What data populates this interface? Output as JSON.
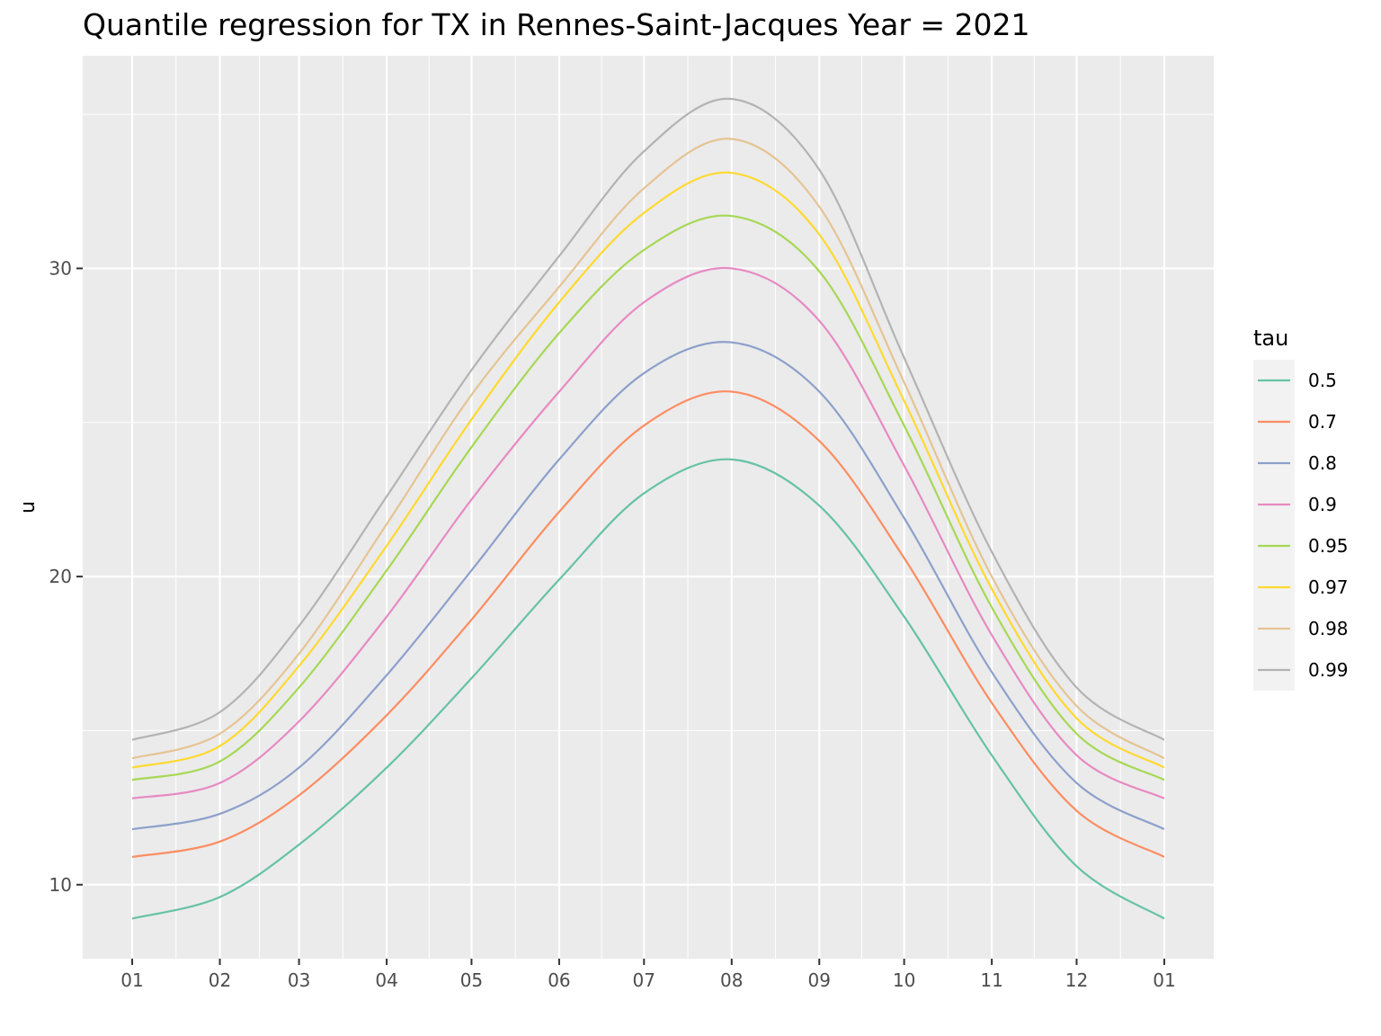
{
  "chart_data": {
    "type": "line",
    "title": "Quantile regression for TX in Rennes-Saint-Jacques Year = 2021",
    "xlabel": "",
    "ylabel": "u",
    "x_ticks": [
      "01",
      "02",
      "03",
      "04",
      "05",
      "06",
      "07",
      "08",
      "09",
      "10",
      "11",
      "12",
      "01"
    ],
    "y_ticks": [
      10,
      20,
      30
    ],
    "ylim": [
      7.6,
      36.9
    ],
    "grid": true,
    "legend_title": "tau",
    "legend_position": "right",
    "x_unit": "day of year",
    "x": [
      1,
      32,
      60,
      91,
      121,
      152,
      182,
      213,
      244,
      274,
      305,
      335,
      366
    ],
    "series": [
      {
        "name": "0.5",
        "color": "#66C2A5",
        "values": [
          8.9,
          9.6,
          11.3,
          13.8,
          16.7,
          19.9,
          22.7,
          23.8,
          22.3,
          18.7,
          14.2,
          10.6,
          8.9
        ]
      },
      {
        "name": "0.7",
        "color": "#FC8D62",
        "values": [
          10.9,
          11.4,
          12.9,
          15.5,
          18.6,
          22.1,
          24.9,
          26.0,
          24.4,
          20.6,
          15.9,
          12.4,
          10.9
        ]
      },
      {
        "name": "0.8",
        "color": "#8DA0CB",
        "values": [
          11.8,
          12.3,
          13.8,
          16.8,
          20.2,
          23.8,
          26.6,
          27.6,
          26.0,
          21.9,
          16.9,
          13.3,
          11.8
        ]
      },
      {
        "name": "0.9",
        "color": "#E78AC3",
        "values": [
          12.8,
          13.3,
          15.3,
          18.7,
          22.5,
          26.0,
          28.9,
          30.0,
          28.3,
          23.6,
          18.1,
          14.2,
          12.8
        ]
      },
      {
        "name": "0.95",
        "color": "#A6D854",
        "values": [
          13.4,
          14.0,
          16.4,
          20.2,
          24.2,
          27.9,
          30.6,
          31.7,
          29.9,
          24.9,
          19.0,
          14.9,
          13.4
        ]
      },
      {
        "name": "0.97",
        "color": "#FFD92F",
        "values": [
          13.8,
          14.5,
          17.1,
          21.0,
          25.1,
          28.9,
          31.8,
          33.1,
          31.1,
          25.7,
          19.6,
          15.4,
          13.8
        ]
      },
      {
        "name": "0.98",
        "color": "#E5C494",
        "values": [
          14.1,
          14.9,
          17.5,
          21.7,
          25.9,
          29.4,
          32.6,
          34.2,
          32.0,
          26.3,
          20.0,
          15.8,
          14.1
        ]
      },
      {
        "name": "0.99",
        "color": "#B3B3B3",
        "values": [
          14.7,
          15.6,
          18.4,
          22.6,
          26.7,
          30.4,
          33.8,
          35.5,
          33.2,
          27.1,
          20.8,
          16.4,
          14.7
        ]
      }
    ]
  }
}
